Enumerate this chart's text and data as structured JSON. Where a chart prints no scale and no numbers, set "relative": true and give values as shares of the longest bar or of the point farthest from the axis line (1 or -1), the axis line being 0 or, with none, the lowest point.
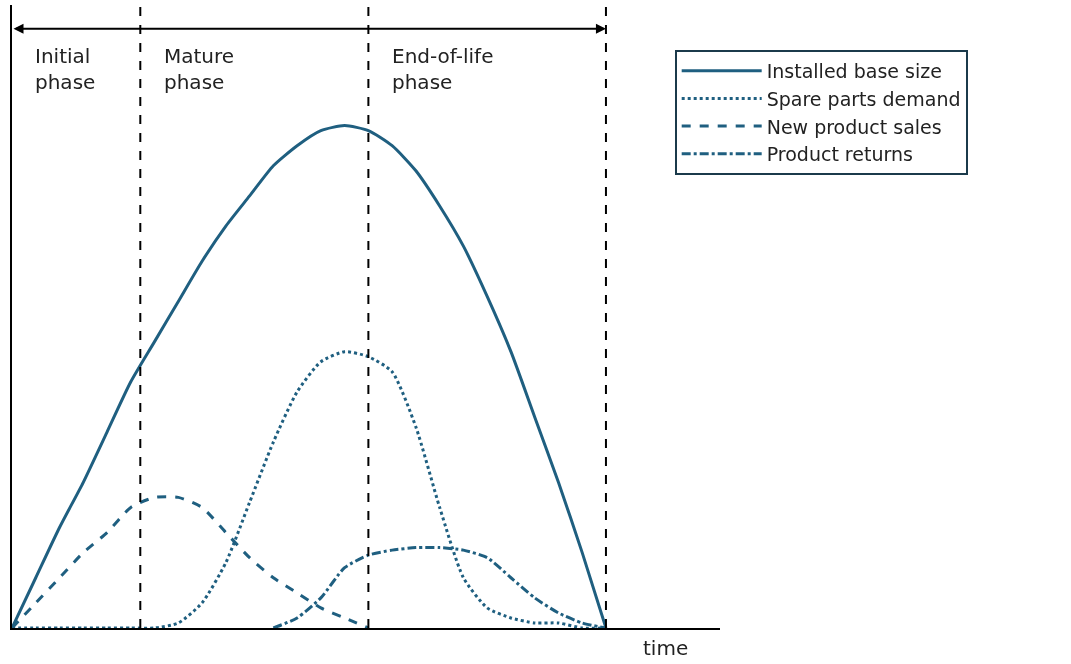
{
  "chart_data": {
    "type": "line",
    "relative": true,
    "xlabel": "time",
    "legend": "top right",
    "tick_labels": false,
    "marker": "none",
    "categories": [
      null,
      null,
      null,
      null,
      null,
      null,
      null,
      null,
      null,
      null,
      null,
      null,
      null,
      null,
      null,
      null,
      null,
      null,
      null,
      null,
      null,
      null,
      null,
      null,
      null,
      null,
      null,
      null,
      null,
      null
    ],
    "series": [
      {
        "name": "Installed base size",
        "color": "#1f5f80",
        "line_style": "solid",
        "values": [
          0,
          0.1,
          0.2,
          0.29,
          0.39,
          0.49,
          0.57,
          0.65,
          0.73,
          0.8,
          0.86,
          0.92,
          0.96,
          0.99,
          1.0,
          0.99,
          0.96,
          0.91,
          0.84,
          0.76,
          0.66,
          0.55,
          0.42,
          0.29,
          0.15,
          0,
          null,
          null,
          null,
          null
        ]
      },
      {
        "name": "Spare parts demand",
        "color": "#1f5f80",
        "line_style": "dotted",
        "values": [
          0,
          0,
          0,
          0,
          0,
          0,
          0,
          0.01,
          0.05,
          0.13,
          0.25,
          0.37,
          0.47,
          0.53,
          0.55,
          0.54,
          0.51,
          0.4,
          0.24,
          0.1,
          0.04,
          0.02,
          0.01,
          0.01,
          0,
          0,
          null,
          null,
          null,
          null
        ]
      },
      {
        "name": "New product sales",
        "color": "#1f5f80",
        "line_style": "dashed",
        "values": [
          0,
          0.05,
          0.1,
          0.15,
          0.19,
          0.24,
          0.26,
          0.26,
          0.24,
          0.19,
          0.14,
          0.1,
          0.07,
          0.04,
          0.02,
          0,
          null,
          null,
          null,
          null,
          null,
          null,
          null,
          null,
          null,
          null,
          null,
          null,
          null,
          null
        ]
      },
      {
        "name": "Product returns",
        "color": "#1f5f80",
        "line_style": "dashdot",
        "values": [
          null,
          null,
          null,
          null,
          null,
          null,
          null,
          null,
          null,
          null,
          null,
          0,
          0.02,
          0.06,
          0.12,
          0.145,
          0.155,
          0.16,
          0.16,
          0.155,
          0.14,
          0.1,
          0.06,
          0.03,
          0.01,
          0,
          null,
          null,
          null,
          null
        ]
      }
    ],
    "annotations": [
      "Initial\nphase",
      "Mature\nphase",
      "End-of-life\nphase"
    ]
  }
}
